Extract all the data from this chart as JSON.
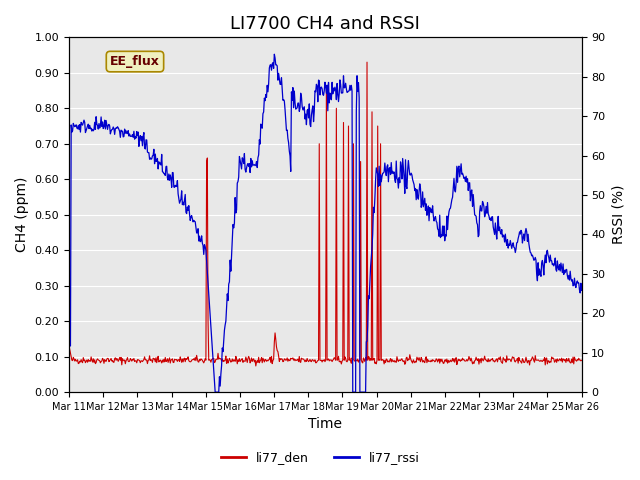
{
  "title": "LI7700 CH4 and RSSI",
  "xlabel": "Time",
  "ylabel_left": "CH4 (ppm)",
  "ylabel_right": "RSSI (%)",
  "ylim_left": [
    0.0,
    1.0
  ],
  "ylim_right": [
    0,
    90
  ],
  "yticks_left": [
    0.0,
    0.1,
    0.2,
    0.3,
    0.4,
    0.5,
    0.6,
    0.7,
    0.8,
    0.9,
    1.0
  ],
  "yticks_right": [
    0,
    10,
    20,
    30,
    40,
    50,
    60,
    70,
    80,
    90
  ],
  "xtick_labels": [
    "Mar 11",
    "Mar 12",
    "Mar 13",
    "Mar 14",
    "Mar 15",
    "Mar 16",
    "Mar 17",
    "Mar 18",
    "Mar 19",
    "Mar 20",
    "Mar 21",
    "Mar 22",
    "Mar 23",
    "Mar 24",
    "Mar 25",
    "Mar 26"
  ],
  "color_ch4": "#cc0000",
  "color_rssi": "#0000cc",
  "legend_label_ch4": "li77_den",
  "legend_label_rssi": "li77_rssi",
  "watermark_text": "EE_flux",
  "background_color": "#e8e8e8",
  "title_fontsize": 13,
  "axis_label_fontsize": 10,
  "tick_fontsize": 8,
  "legend_fontsize": 9
}
